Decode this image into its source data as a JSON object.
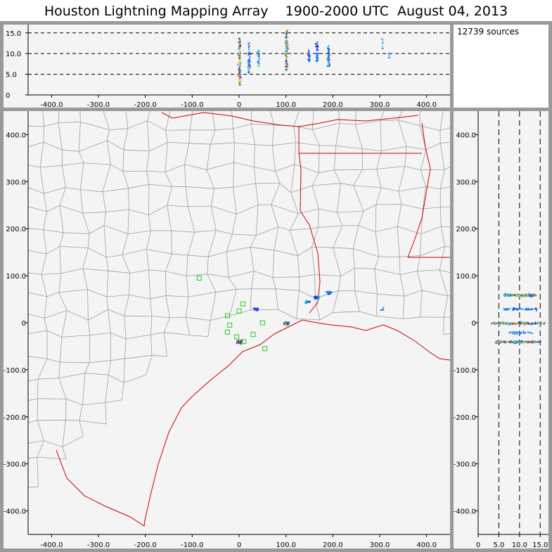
{
  "title": "Houston Lightning Mapping Array    1900-2000 UTC  August 04, 2013",
  "source_count": "12739 sources",
  "colors": {
    "plot_background": "#f4f4f4",
    "frame": "#9a9a9a",
    "county_lines": "#a0a0a0",
    "coast_and_state_lines": "#cc0000",
    "station_markers": "#22cc22",
    "source_colormap": [
      "#3b0fb0",
      "#2040ff",
      "#00a0ff",
      "#00d8c0",
      "#40e080",
      "#d0e020",
      "#ff9000",
      "#ff2000",
      "#800000"
    ]
  },
  "chart_data": [
    {
      "panel": "altitude-vs-east-west",
      "type": "scatter",
      "x_ticks": [
        "-400.0",
        "-300.0",
        "-200.0",
        "-100.0",
        "0",
        "100.0",
        "200.0",
        "300.0",
        "400.0"
      ],
      "y_ticks": [
        "0",
        "5.0",
        "10.0",
        "15.0"
      ],
      "xlim": [
        -450,
        450
      ],
      "ylim": [
        0,
        17
      ],
      "gridlines_y": [
        5,
        10,
        15
      ],
      "clusters": [
        {
          "x": 0,
          "y_range": [
            2,
            14
          ],
          "density": "high"
        },
        {
          "x": 20,
          "y_range": [
            5,
            13
          ],
          "density": "medium"
        },
        {
          "x": 40,
          "y_range": [
            7,
            11
          ],
          "density": "low"
        },
        {
          "x": 100,
          "y_range": [
            6,
            16
          ],
          "density": "high"
        },
        {
          "x": 148,
          "y_range": [
            8,
            11
          ],
          "density": "low"
        },
        {
          "x": 165,
          "y_range": [
            8,
            13
          ],
          "density": "medium"
        },
        {
          "x": 190,
          "y_range": [
            7,
            12
          ],
          "density": "medium"
        },
        {
          "x": 305,
          "y_range": [
            9,
            14
          ],
          "density": "sparse"
        },
        {
          "x": 320,
          "y_range": [
            9,
            11
          ],
          "density": "sparse"
        }
      ]
    },
    {
      "panel": "plan-view-map",
      "type": "scatter",
      "x_ticks": [
        "-400.0",
        "-300.0",
        "-200.0",
        "-100.0",
        "0",
        "100.0",
        "200.0",
        "300.0",
        "400.0"
      ],
      "y_ticks": [
        "-400.0",
        "-300.0",
        "-200.0",
        "-100.0",
        "0",
        "100.0",
        "200.0",
        "300.0",
        "400.0"
      ],
      "xlim": [
        -450,
        450
      ],
      "ylim": [
        -450,
        450
      ],
      "clusters": [
        {
          "x": 0,
          "y": -40,
          "density": "high"
        },
        {
          "x": 35,
          "y": 30,
          "density": "medium"
        },
        {
          "x": 100,
          "y": 0,
          "density": "high"
        },
        {
          "x": 145,
          "y": 45,
          "density": "low"
        },
        {
          "x": 165,
          "y": 55,
          "density": "medium"
        },
        {
          "x": 190,
          "y": 65,
          "density": "medium"
        },
        {
          "x": 305,
          "y": 30,
          "density": "sparse"
        }
      ],
      "stations": [
        [
          -85,
          95
        ],
        [
          -25,
          15
        ],
        [
          0,
          25
        ],
        [
          -20,
          -5
        ],
        [
          -25,
          -20
        ],
        [
          -5,
          -30
        ],
        [
          8,
          40
        ],
        [
          30,
          -25
        ],
        [
          50,
          0
        ],
        [
          55,
          -55
        ],
        [
          10,
          -40
        ]
      ]
    },
    {
      "panel": "north-south-vs-altitude",
      "type": "scatter",
      "x_ticks": [
        "0",
        "5.0",
        "10.0",
        "15.0"
      ],
      "y_ticks": [
        "-400.0",
        "-300.0",
        "-200.0",
        "-100.0",
        "0",
        "100.0",
        "200.0",
        "300.0",
        "400.0"
      ],
      "xlim": [
        0,
        17
      ],
      "ylim": [
        -450,
        450
      ],
      "gridlines_x": [
        5,
        10,
        15
      ],
      "clusters": [
        {
          "y": 60,
          "x_range": [
            6,
            14
          ],
          "density": "high"
        },
        {
          "y": 30,
          "x_range": [
            6,
            14
          ],
          "density": "medium"
        },
        {
          "y": 0,
          "x_range": [
            3,
            16
          ],
          "density": "high"
        },
        {
          "y": -20,
          "x_range": [
            7,
            13
          ],
          "density": "low"
        },
        {
          "y": -40,
          "x_range": [
            4,
            15
          ],
          "density": "high"
        }
      ]
    }
  ]
}
